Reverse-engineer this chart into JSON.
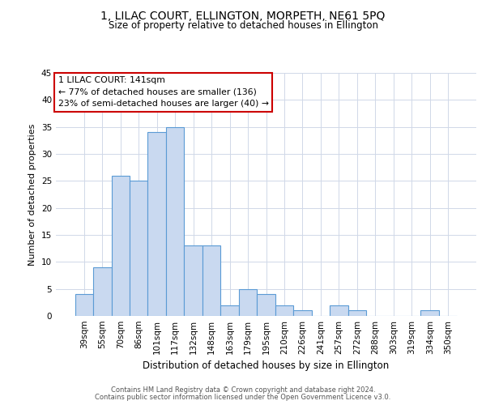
{
  "title_line1": "1, LILAC COURT, ELLINGTON, MORPETH, NE61 5PQ",
  "title_line2": "Size of property relative to detached houses in Ellington",
  "xlabel": "Distribution of detached houses by size in Ellington",
  "ylabel": "Number of detached properties",
  "bar_labels": [
    "39sqm",
    "55sqm",
    "70sqm",
    "86sqm",
    "101sqm",
    "117sqm",
    "132sqm",
    "148sqm",
    "163sqm",
    "179sqm",
    "195sqm",
    "210sqm",
    "226sqm",
    "241sqm",
    "257sqm",
    "272sqm",
    "288sqm",
    "303sqm",
    "319sqm",
    "334sqm",
    "350sqm"
  ],
  "bar_values": [
    4,
    9,
    26,
    25,
    34,
    35,
    13,
    13,
    2,
    5,
    4,
    2,
    1,
    0,
    2,
    1,
    0,
    0,
    0,
    1,
    0
  ],
  "bar_color": "#c9d9f0",
  "bar_edge_color": "#5b9bd5",
  "ylim": [
    0,
    45
  ],
  "yticks": [
    0,
    5,
    10,
    15,
    20,
    25,
    30,
    35,
    40,
    45
  ],
  "annotation_title": "1 LILAC COURT: 141sqm",
  "annotation_line1": "← 77% of detached houses are smaller (136)",
  "annotation_line2": "23% of semi-detached houses are larger (40) →",
  "annotation_box_color": "#ffffff",
  "annotation_box_edge_color": "#cc0000",
  "footnote_line1": "Contains HM Land Registry data © Crown copyright and database right 2024.",
  "footnote_line2": "Contains public sector information licensed under the Open Government Licence v3.0.",
  "background_color": "#ffffff",
  "grid_color": "#d0d8e8"
}
